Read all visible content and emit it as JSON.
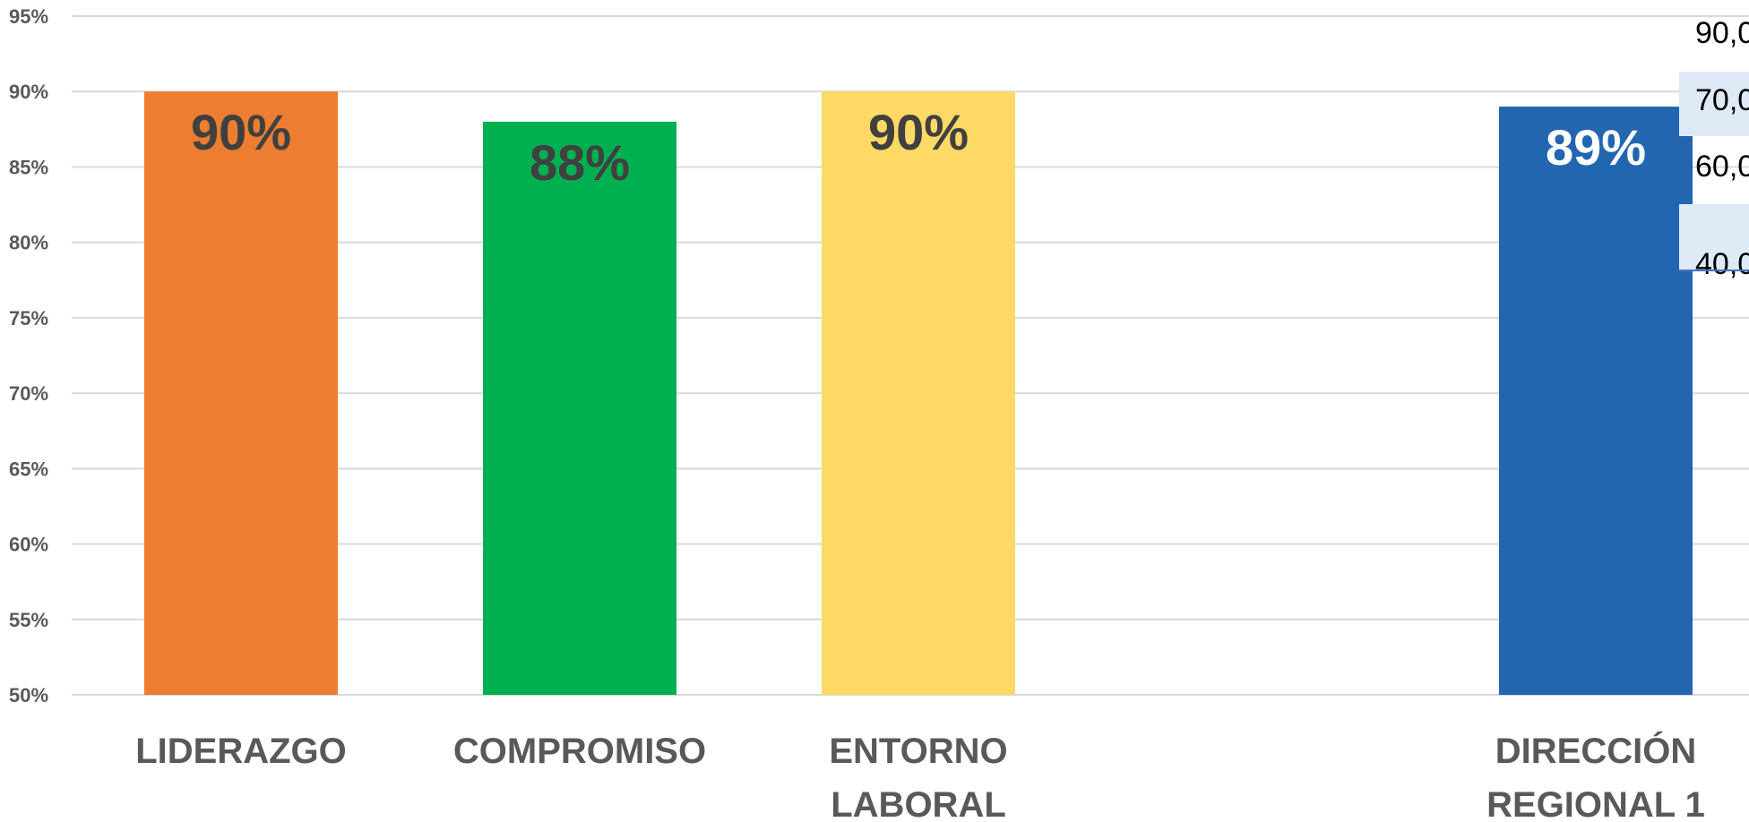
{
  "chart_data": {
    "type": "bar",
    "categories": [
      "LIDERAZGO",
      "COMPROMISO",
      "ENTORNO LABORAL",
      "",
      "DIRECCIÓN REGIONAL 1"
    ],
    "category_lines": [
      [
        "LIDERAZGO"
      ],
      [
        "COMPROMISO"
      ],
      [
        "ENTORNO",
        "LABORAL"
      ],
      [],
      [
        "DIRECCIÓN",
        "REGIONAL 1"
      ]
    ],
    "values": [
      90,
      88,
      90,
      null,
      89
    ],
    "data_labels": [
      "90%",
      "88%",
      "90%",
      "",
      "89%"
    ],
    "colors": [
      "#ED7D31",
      "#00B050",
      "#FFD966",
      null,
      "#2266B0"
    ],
    "label_colors": [
      "#404040",
      "#404040",
      "#404040",
      null,
      "#FFFFFF"
    ],
    "yticks": [
      "50%",
      "55%",
      "60%",
      "65%",
      "70%",
      "75%",
      "80%",
      "85%",
      "90%",
      "95%"
    ],
    "ylim": [
      50,
      95
    ],
    "grid": true,
    "gridline_color": "#D9D9D9",
    "title": "",
    "xlabel": "",
    "ylabel": ""
  },
  "side_table": {
    "values": [
      "90,0",
      "70,0",
      "60,0",
      "40,0"
    ],
    "highlight_color": "#DEEAF6",
    "rule_color": "#4472C4"
  }
}
